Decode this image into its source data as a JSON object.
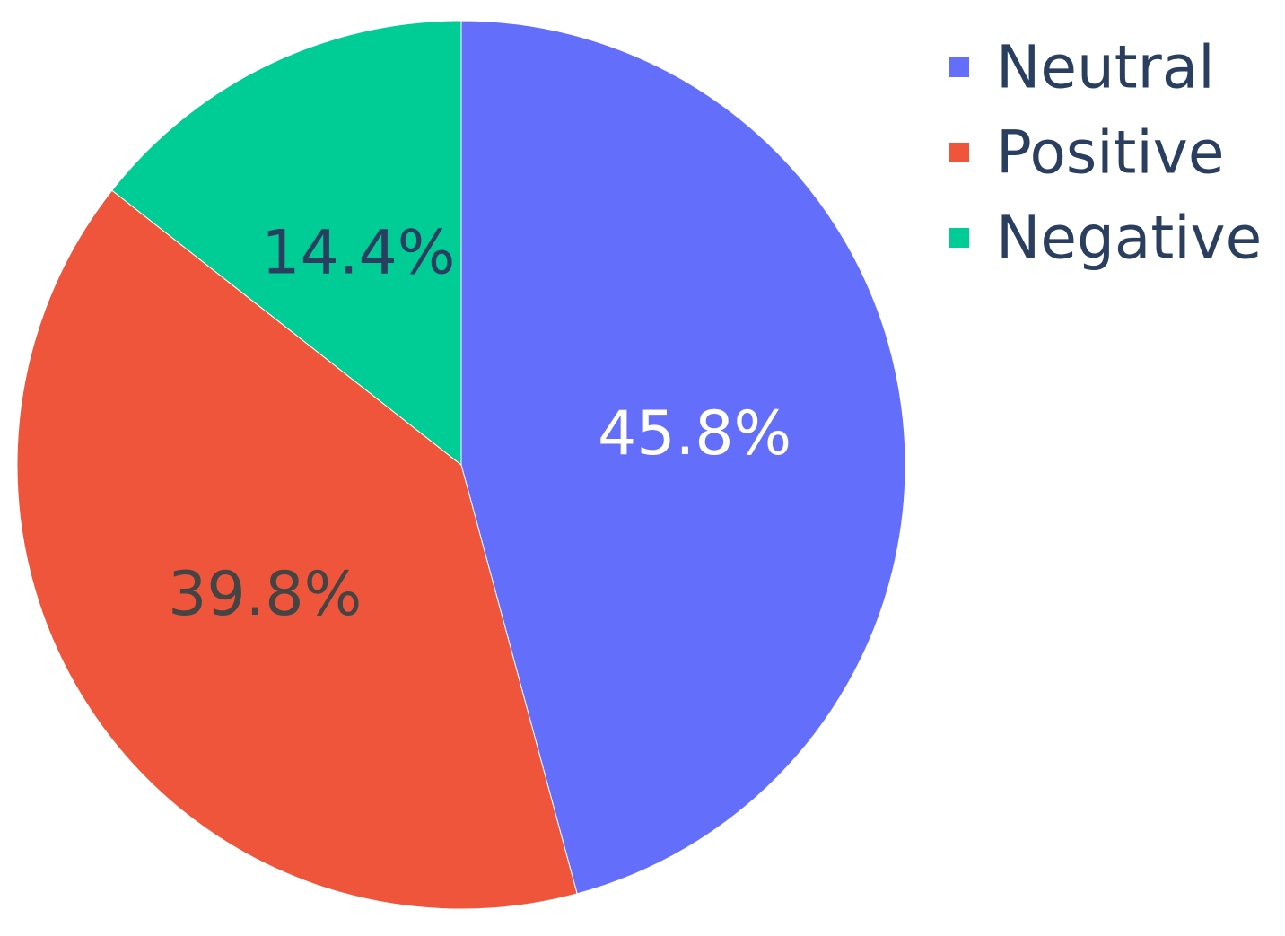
{
  "chart_data": {
    "type": "pie",
    "categories": [
      "Neutral",
      "Positive",
      "Negative"
    ],
    "values": [
      45.8,
      39.8,
      14.4
    ],
    "colors": [
      "#636efa",
      "#ef553b",
      "#00cc96"
    ],
    "labels": [
      "45.8%",
      "39.8%",
      "14.4%"
    ],
    "label_colors": [
      "#ffffff",
      "#444444",
      "#2a3f5f"
    ],
    "direction": "clockwise",
    "start_angle": "12 o'clock",
    "legend_position": "top-right",
    "legend": [
      {
        "name": "Neutral",
        "color": "#636efa"
      },
      {
        "name": "Positive",
        "color": "#ef553b"
      },
      {
        "name": "Negative",
        "color": "#00cc96"
      }
    ]
  }
}
